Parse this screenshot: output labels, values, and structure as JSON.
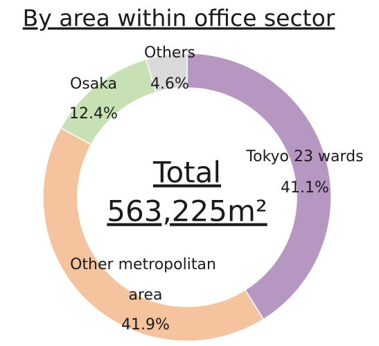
{
  "chart_data": {
    "type": "donut",
    "title": "By area within office sector",
    "center_title": "Total",
    "center_value": "563,225m²",
    "categories": [
      "Tokyo 23 wards",
      "Other metropolitan area",
      "Osaka",
      "Others"
    ],
    "values": [
      41.1,
      41.9,
      12.4,
      4.6
    ],
    "value_labels": [
      "41.1%",
      "41.9%",
      "12.4%",
      "4.6%"
    ],
    "colors": [
      "#b697c2",
      "#f5c39d",
      "#c7e1b5",
      "#dadada"
    ]
  }
}
